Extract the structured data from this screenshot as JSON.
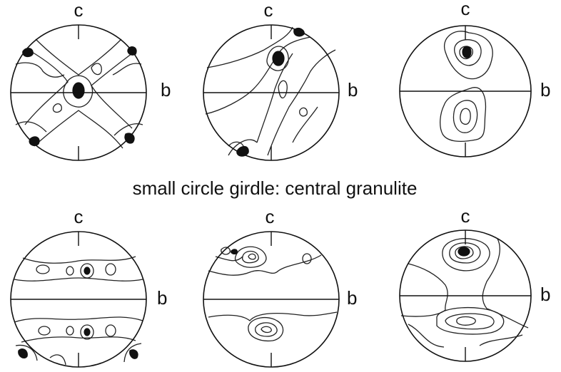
{
  "caption": "small circle girdle: central granulite",
  "panels": [
    {
      "top_label": "c",
      "right_label": "b"
    },
    {
      "top_label": "c",
      "right_label": "b"
    },
    {
      "top_label": "c",
      "right_label": "b"
    },
    {
      "top_label": "c",
      "right_label": "b"
    },
    {
      "top_label": "c",
      "right_label": "b"
    },
    {
      "top_label": "c",
      "right_label": "b"
    }
  ]
}
